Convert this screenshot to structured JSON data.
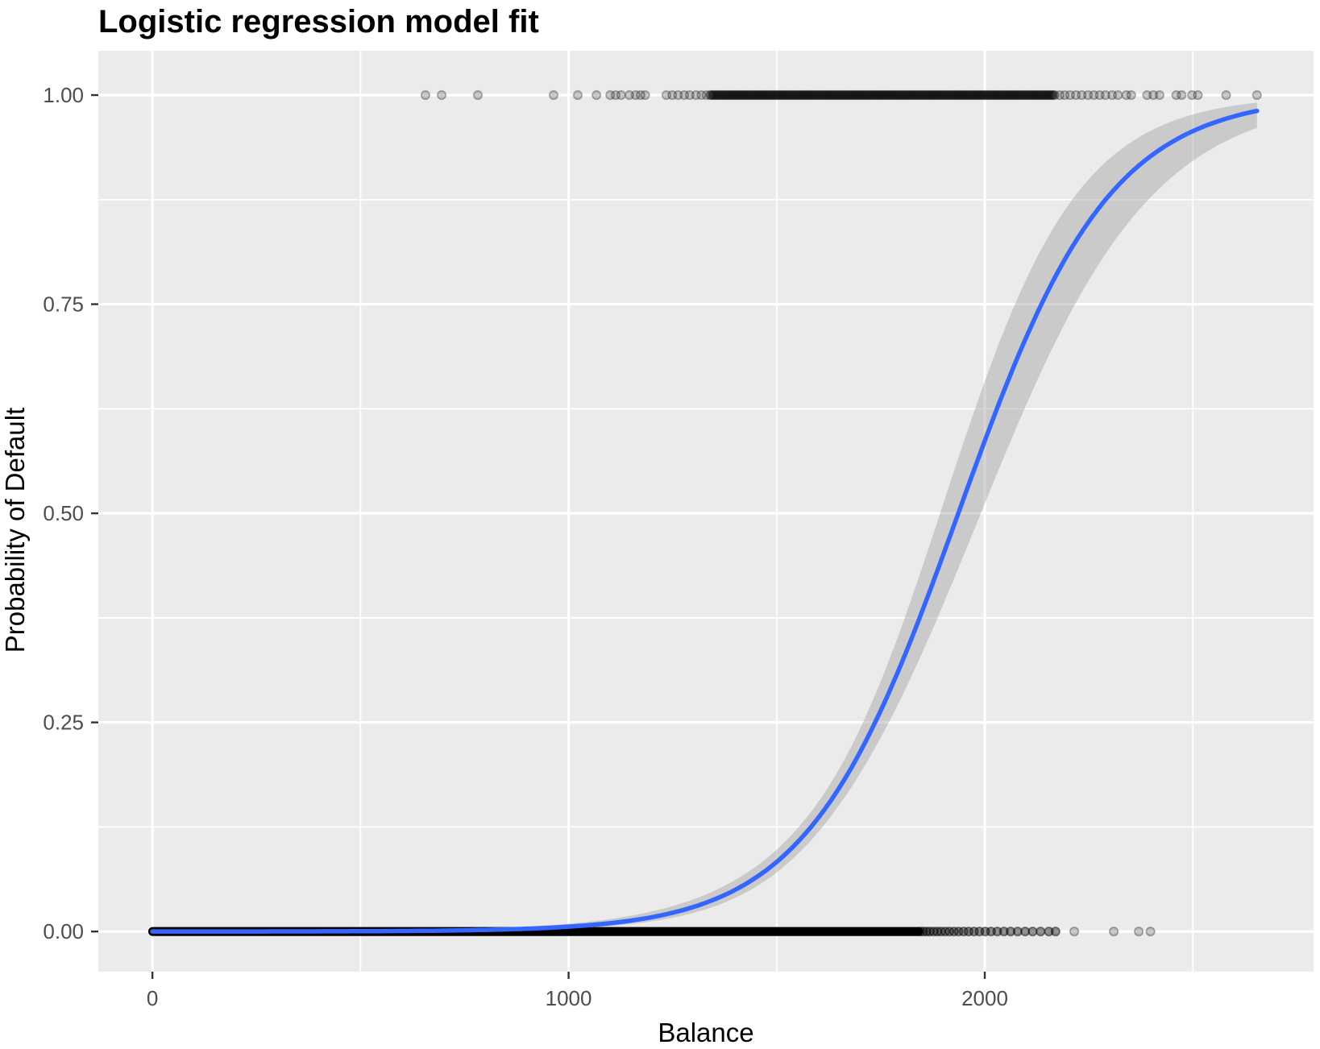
{
  "chart_data": {
    "type": "scatter",
    "title": "Logistic regression model fit",
    "xlabel": "Balance",
    "ylabel": "Probability of Default",
    "legend": "none",
    "grid": "white major and minor gridlines on gray panel",
    "xlim": [
      -130,
      2790
    ],
    "ylim": [
      -0.048,
      1.053
    ],
    "x_ticks": [
      0,
      1000,
      2000
    ],
    "x_tick_labels": [
      "0",
      "1000",
      "2000"
    ],
    "x_minor_ticks": [
      500,
      1500,
      2500
    ],
    "y_ticks": [
      0,
      0.25,
      0.5,
      0.75,
      1
    ],
    "y_tick_labels": [
      "0.00",
      "0.25",
      "0.50",
      "0.75",
      "1.00"
    ],
    "y_minor_ticks": [
      0.125,
      0.375,
      0.625,
      0.875
    ],
    "series": [
      {
        "name": "defaulted-observations",
        "y": 1,
        "sparse_x": [
          656,
          695,
          782,
          964,
          1022,
          1067,
          1100,
          1113,
          1126,
          1146,
          1161,
          1173,
          1184,
          1235,
          1249,
          1263,
          1278,
          1291,
          1306,
          1319,
          1331
        ],
        "dense_band": {
          "from": 1340,
          "to": 2170,
          "step": 4
        },
        "tail_x": [
          2180,
          2192,
          2205,
          2219,
          2233,
          2248,
          2262,
          2276,
          2290,
          2306,
          2320,
          2340,
          2352,
          2390,
          2405,
          2420,
          2460,
          2473,
          2498,
          2512,
          2580,
          2654
        ]
      },
      {
        "name": "non-defaulted-observations",
        "y": 0,
        "solid_band": {
          "from": 0,
          "to": 1841
        },
        "fade_x": [
          1845,
          1852,
          1860,
          1868,
          1877,
          1886,
          1895,
          1905,
          1915,
          1926,
          1937,
          1949,
          1961,
          1974,
          1987,
          2001,
          2015,
          2030,
          2046,
          2062,
          2079,
          2097,
          2115,
          2134,
          2154,
          2170
        ],
        "scattered_x": [
          2215,
          2310,
          2370,
          2398
        ]
      },
      {
        "name": "logistic-fit-line",
        "model": {
          "intercept": -10.65,
          "slope": 0.0055,
          "x_range": [
            0,
            2654
          ]
        },
        "sampled_points": [
          [
            0,
            2e-05
          ],
          [
            200,
            7e-05
          ],
          [
            400,
            0.00021
          ],
          [
            600,
            0.00064
          ],
          [
            800,
            0.00192
          ],
          [
            1000,
            0.00576
          ],
          [
            1200,
            0.01713
          ],
          [
            1400,
            0.04966
          ],
          [
            1500,
            0.0832
          ],
          [
            1600,
            0.1362
          ],
          [
            1700,
            0.2144
          ],
          [
            1800,
            0.3212
          ],
          [
            1900,
            0.4503
          ],
          [
            1936,
            0.5
          ],
          [
            2000,
            0.5868
          ],
          [
            2100,
            0.7111
          ],
          [
            2200,
            0.8099
          ],
          [
            2300,
            0.8813
          ],
          [
            2400,
            0.9282
          ],
          [
            2500,
            0.9573
          ],
          [
            2600,
            0.9744
          ],
          [
            2654,
            0.9809
          ]
        ]
      },
      {
        "name": "confidence-ribbon-95pct",
        "cov": {
          "v11": 0.36,
          "v22": 1.33e-07,
          "v12": -0.000217,
          "z": 1.96
        }
      }
    ],
    "colors": {
      "panel_bg": "#EBEBEB",
      "grid": "#FFFFFF",
      "curve_blue": "#3366FF",
      "ribbon_gray": "#999999",
      "point_black": "#000000",
      "tick_mark": "#333333",
      "tick_label": "#4D4D4D",
      "axis_text": "#000000"
    }
  }
}
